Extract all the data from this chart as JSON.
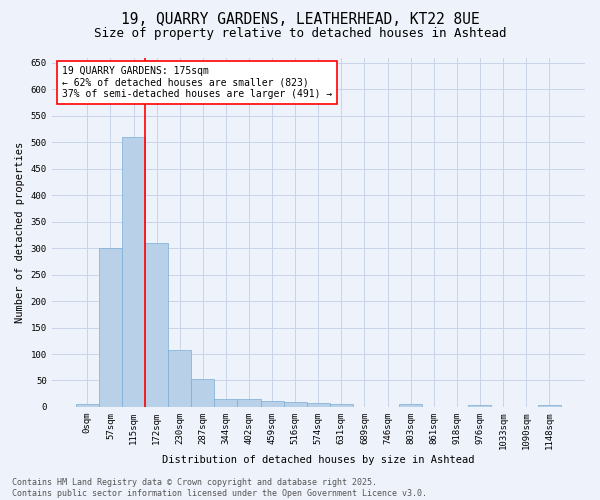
{
  "title": "19, QUARRY GARDENS, LEATHERHEAD, KT22 8UE",
  "subtitle": "Size of property relative to detached houses in Ashtead",
  "xlabel": "Distribution of detached houses by size in Ashtead",
  "ylabel": "Number of detached properties",
  "footer_line1": "Contains HM Land Registry data © Crown copyright and database right 2025.",
  "footer_line2": "Contains public sector information licensed under the Open Government Licence v3.0.",
  "bar_labels": [
    "0sqm",
    "57sqm",
    "115sqm",
    "172sqm",
    "230sqm",
    "287sqm",
    "344sqm",
    "402sqm",
    "459sqm",
    "516sqm",
    "574sqm",
    "631sqm",
    "689sqm",
    "746sqm",
    "803sqm",
    "861sqm",
    "918sqm",
    "976sqm",
    "1033sqm",
    "1090sqm",
    "1148sqm"
  ],
  "bar_values": [
    5,
    300,
    510,
    310,
    107,
    53,
    15,
    15,
    12,
    9,
    7,
    5,
    0,
    0,
    5,
    0,
    0,
    3,
    0,
    0,
    3
  ],
  "bar_color": "#b8d0e8",
  "bar_edge_color": "#7aadd4",
  "property_label": "19 QUARRY GARDENS: 175sqm",
  "pct_smaller": 62,
  "n_smaller": 823,
  "pct_larger_semi": 37,
  "n_larger_semi": 491,
  "vline_x": 2.5,
  "ylim": [
    0,
    660
  ],
  "yticks": [
    0,
    50,
    100,
    150,
    200,
    250,
    300,
    350,
    400,
    450,
    500,
    550,
    600,
    650
  ],
  "grid_color": "#c8d4e8",
  "background_color": "#eef2fa",
  "title_fontsize": 10.5,
  "subtitle_fontsize": 9,
  "axis_label_fontsize": 7.5,
  "tick_fontsize": 6.5,
  "annotation_fontsize": 7,
  "footer_fontsize": 6
}
